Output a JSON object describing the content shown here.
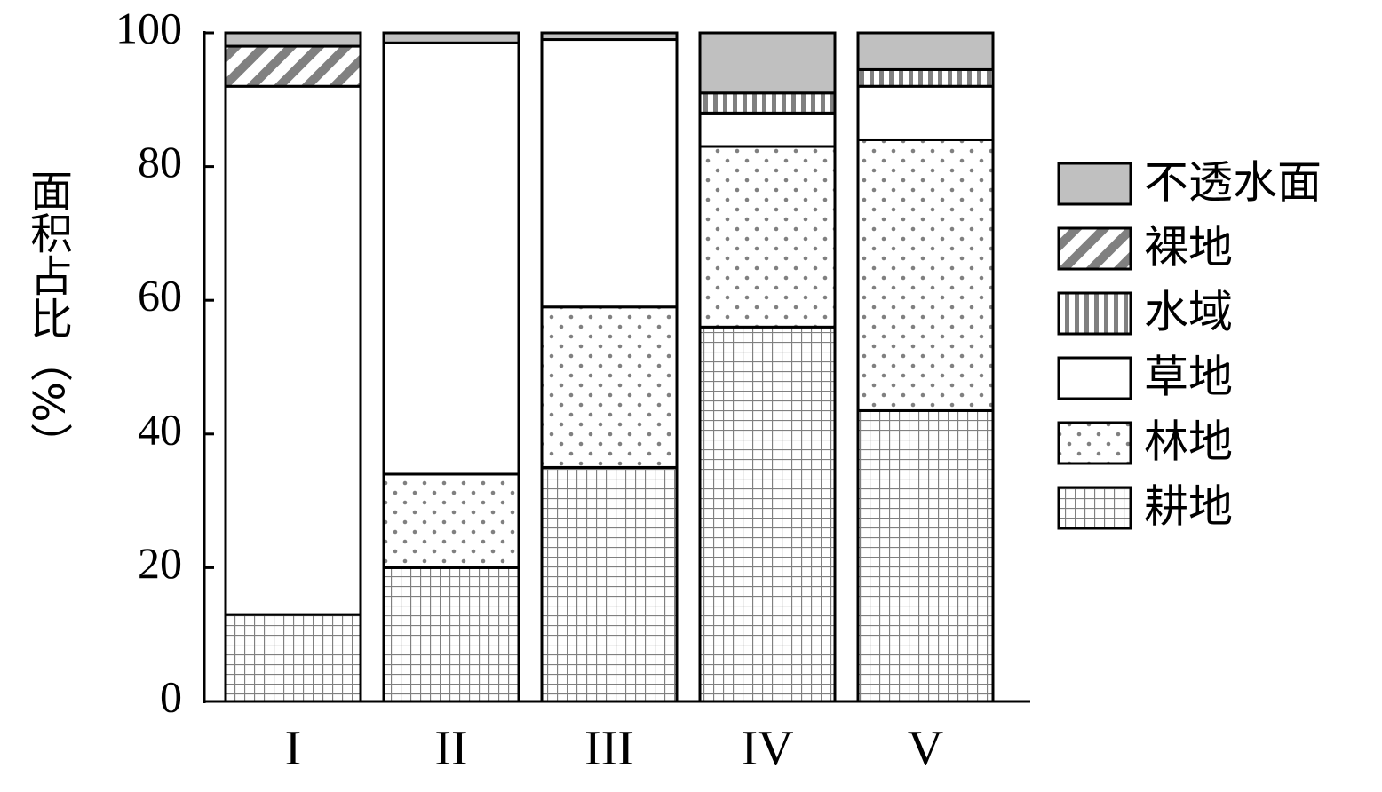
{
  "chart_data": {
    "type": "stacked_bar",
    "y_label": "面积占比（%）",
    "categories": [
      "I",
      "II",
      "III",
      "IV",
      "V"
    ],
    "series": [
      {
        "name": "耕地",
        "pattern": "grid",
        "color": "#808080",
        "values": [
          13,
          20,
          35,
          56,
          43.5
        ]
      },
      {
        "name": "林地",
        "pattern": "dots",
        "color": "#808080",
        "values": [
          0,
          14,
          24,
          27,
          40.5
        ]
      },
      {
        "name": "草地",
        "pattern": "none",
        "color": "#ffffff",
        "values": [
          79,
          64.5,
          40,
          5,
          8
        ]
      },
      {
        "name": "水域",
        "pattern": "vertical",
        "color": "#808080",
        "values": [
          0,
          0,
          0,
          3,
          2.5
        ]
      },
      {
        "name": "裸地",
        "pattern": "diagonal",
        "color": "#808080",
        "values": [
          6,
          0,
          0,
          0,
          0
        ]
      },
      {
        "name": "不透水面",
        "pattern": "solid",
        "color": "#c0c0c0",
        "values": [
          2,
          1.5,
          1,
          9,
          5.5
        ]
      }
    ],
    "ylim": [
      0,
      100
    ],
    "yticks": [
      0,
      20,
      40,
      60,
      80,
      100
    ]
  }
}
